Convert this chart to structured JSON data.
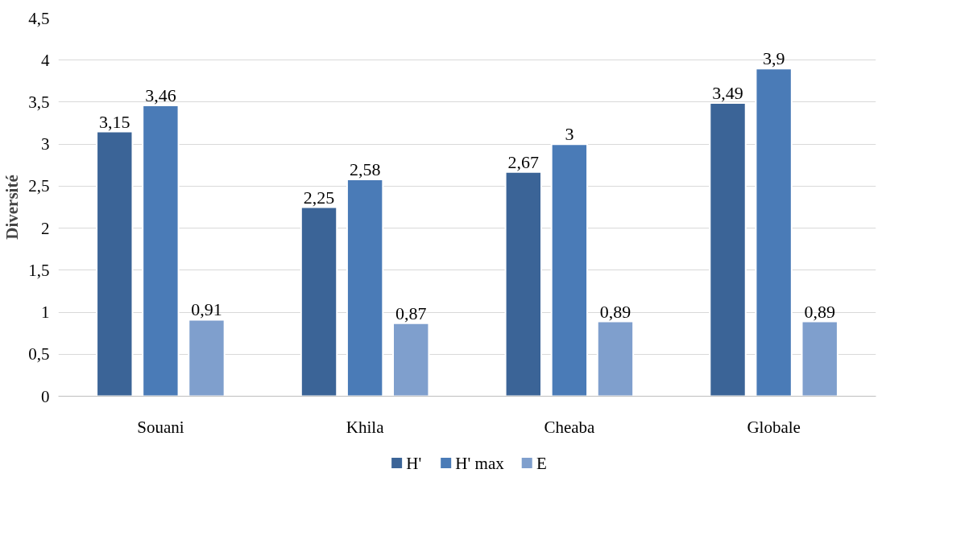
{
  "chart_data": {
    "type": "bar",
    "ylabel": "Diversité",
    "categories": [
      "Souani",
      "Khila",
      "Cheaba",
      "Globale"
    ],
    "series": [
      {
        "name": "H'",
        "color": "#3b6497",
        "values": [
          3.15,
          2.25,
          2.67,
          3.49
        ],
        "value_labels": [
          "3,15",
          "2,25",
          "2,67",
          "3,49"
        ]
      },
      {
        "name": "H' max",
        "color": "#4a7bb7",
        "values": [
          3.46,
          2.58,
          3.0,
          3.9
        ],
        "value_labels": [
          "3,46",
          "2,58",
          "3",
          "3,9"
        ]
      },
      {
        "name": "E",
        "color": "#7f9fcd",
        "values": [
          0.91,
          0.87,
          0.89,
          0.89
        ],
        "value_labels": [
          "0,91",
          "0,87",
          "0,89",
          "0,89"
        ]
      }
    ],
    "ylim": [
      0,
      4.5
    ],
    "yticks": [
      0,
      {
        "value": 0.5,
        "label": "0,5"
      },
      1,
      {
        "value": 1.5,
        "label": "1,5"
      },
      2,
      {
        "value": 2.5,
        "label": "2,5"
      },
      3,
      {
        "value": 3.5,
        "label": "3,5"
      },
      4,
      {
        "value": 4.5,
        "label": "4,5"
      }
    ],
    "grid": "y",
    "legend": "bottom"
  }
}
